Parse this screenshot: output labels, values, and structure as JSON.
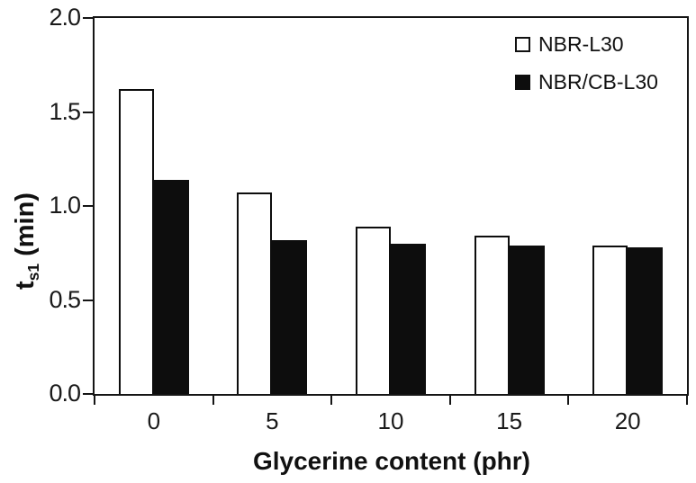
{
  "chart_data": {
    "type": "bar",
    "title": "",
    "xlabel": "Glycerine content (phr)",
    "ylabel": {
      "symbol": "t",
      "subscript": "s1",
      "unit": " (min)"
    },
    "categories": [
      "0",
      "5",
      "10",
      "15",
      "20"
    ],
    "series": [
      {
        "name": "NBR-L30",
        "fill": "#ffffff",
        "outline": "#000000",
        "values": [
          1.62,
          1.07,
          0.89,
          0.84,
          0.79
        ]
      },
      {
        "name": "NBR/CB-L30",
        "fill": "#000000",
        "outline": "#000000",
        "values": [
          1.14,
          0.82,
          0.8,
          0.79,
          0.78
        ]
      }
    ],
    "ylim": [
      0.0,
      2.0
    ],
    "yticks": [
      "0.0",
      "0.5",
      "1.0",
      "1.5",
      "2.0"
    ],
    "grid": false,
    "legend": {
      "position": "top-right",
      "entries": [
        {
          "label": "NBR-L30",
          "swatch": "open-square"
        },
        {
          "label": "NBR/CB-L30",
          "swatch": "filled-square"
        }
      ]
    },
    "colors": {
      "background": "#ffffff",
      "axis": "#151515",
      "text": "#1a1a1a"
    }
  }
}
